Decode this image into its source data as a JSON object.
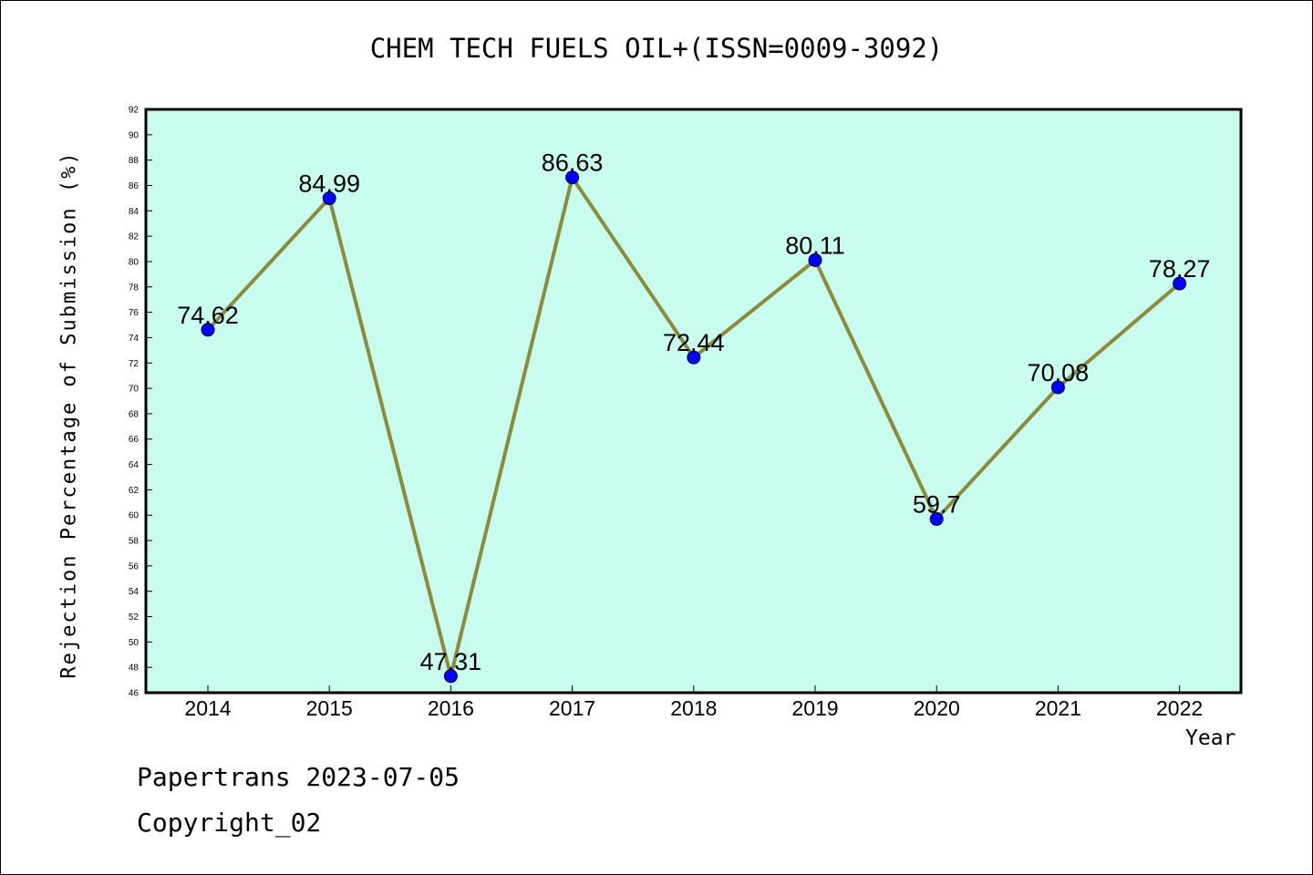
{
  "chart_data": {
    "type": "line",
    "title": "CHEM TECH FUELS OIL+(ISSN=0009-3092)",
    "xlabel": "Year",
    "ylabel": "Rejection Percentage of Submission (%)",
    "categories": [
      "2014",
      "2015",
      "2016",
      "2017",
      "2018",
      "2019",
      "2020",
      "2021",
      "2022"
    ],
    "values": [
      74.62,
      84.99,
      47.31,
      86.63,
      72.44,
      80.11,
      59.7,
      70.08,
      78.27
    ],
    "data_labels": [
      "74.62",
      "84.99",
      "47.31",
      "86.63",
      "72.44",
      "80.11",
      "59.7",
      "70.08",
      "78.27"
    ],
    "ylim": [
      46,
      92
    ],
    "ytick_step": 2,
    "grid": false,
    "colors": {
      "plot_background": "#c8fcee",
      "line": "#8b8b3a",
      "marker": "#0000ff"
    }
  },
  "footer": {
    "line1": "Papertrans 2023-07-05",
    "line2": "Copyright_02"
  }
}
